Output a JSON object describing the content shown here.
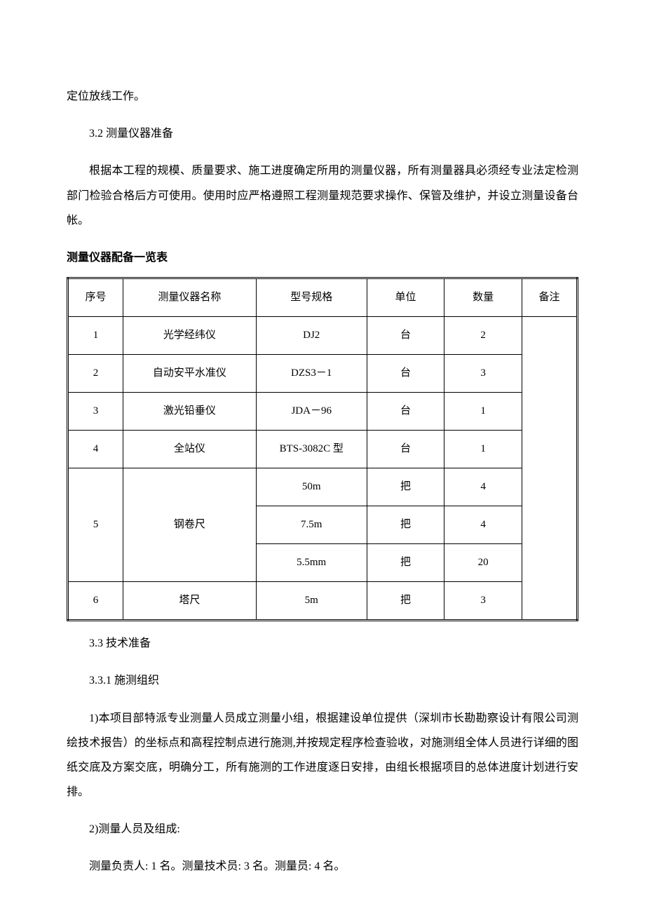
{
  "paragraphs": {
    "p1": "定位放线工作。",
    "p2": "3.2 测量仪器准备",
    "p3": "根据本工程的规模、质量要求、施工进度确定所用的测量仪器，所有测量器具必须经专业法定检测部门检验合格后方可使用。使用时应严格遵照工程测量规范要求操作、保管及维护，并设立测量设备台帐。",
    "table_title": "测量仪器配备一览表",
    "p4": "3.3 技术准备",
    "p5": "3.3.1 施测组织",
    "p6": "1)本项目部特派专业测量人员成立测量小组，根据建设单位提供（深圳市长勘勘察设计有限公司测绘技术报告）的坐标点和高程控制点进行施测,并按规定程序检查验收，对施测组全体人员进行详细的图纸交底及方案交底，明确分工，所有施测的工作进度逐日安排，由组长根据项目的总体进度计划进行安排。",
    "p7": "2)测量人员及组成:",
    "p8": "测量负责人: 1 名。测量技术员: 3 名。测量员: 4 名。"
  },
  "table": {
    "header": {
      "c1": "序号",
      "c2": "测量仪器名称",
      "c3": "型号规格",
      "c4": "单位",
      "c5": "数量",
      "c6": "备注"
    },
    "r1": {
      "c1": "1",
      "c2": "光学经纬仪",
      "c3": "DJ2",
      "c4": "台",
      "c5": "2",
      "c6": ""
    },
    "r2": {
      "c1": "2",
      "c2": "自动安平水准仪",
      "c3": "DZS3－1",
      "c4": "台",
      "c5": "3",
      "c6": ""
    },
    "r3": {
      "c1": "3",
      "c2": "激光铅垂仪",
      "c3": "JDA－96",
      "c4": "台",
      "c5": "1",
      "c6": ""
    },
    "r4": {
      "c1": "4",
      "c2": "全站仪",
      "c3": "BTS-3082C 型",
      "c4": "台",
      "c5": "1",
      "c6": ""
    },
    "r5": {
      "c1": "5",
      "c2": "钢卷尺"
    },
    "r5a": {
      "c3": "50m",
      "c4": "把",
      "c5": "4"
    },
    "r5b": {
      "c3": "7.5m",
      "c4": "把",
      "c5": "4"
    },
    "r5c": {
      "c3": "5.5mm",
      "c4": "把",
      "c5": "20"
    },
    "r6": {
      "c1": "6",
      "c2": "塔尺",
      "c3": "5m",
      "c4": "把",
      "c5": "3",
      "c6": ""
    }
  }
}
